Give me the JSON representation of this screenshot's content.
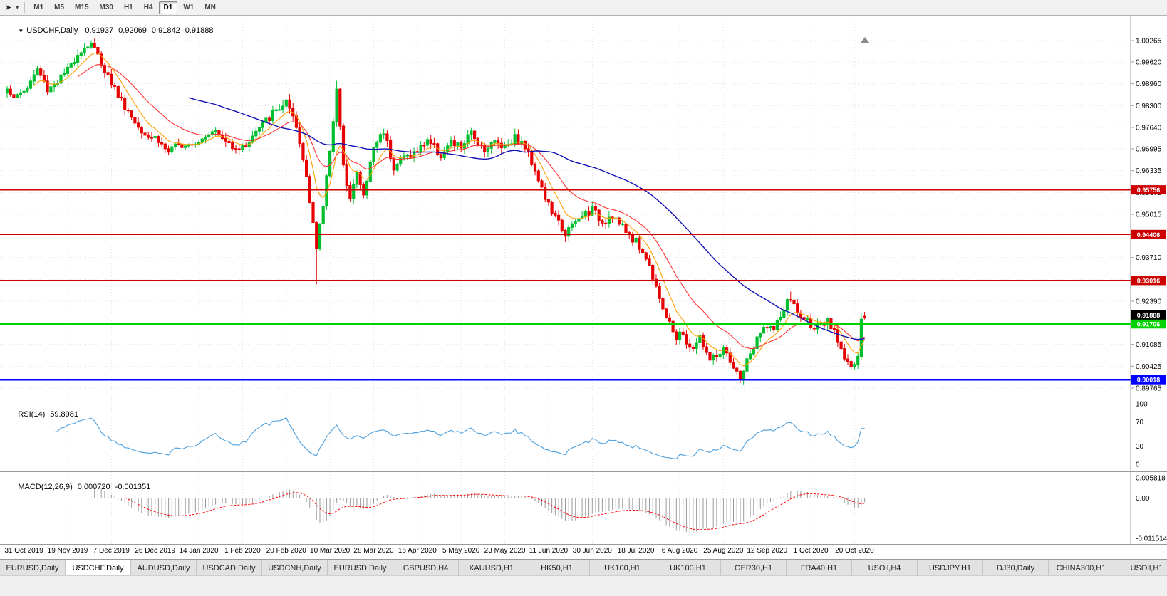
{
  "colors": {
    "bull": "#00bf2f",
    "bear": "#e60000",
    "ma_fast": "#ff9f00",
    "ma_mid": "#ff3232",
    "ma_slow": "#0f10b4",
    "grid": "#e4e4e4",
    "rsi_line": "#4a9fdf",
    "rsi_level": "#b8c4b8",
    "macd_hist": "#9a9a9a",
    "macd_signal": "#ff0000",
    "price_line": "#b8b8b8",
    "price_badge_bg": "#000000"
  },
  "toolbar": {
    "timeframes": [
      {
        "label": "M1",
        "active": false
      },
      {
        "label": "M5",
        "active": false
      },
      {
        "label": "M15",
        "active": false
      },
      {
        "label": "M30",
        "active": false
      },
      {
        "label": "H1",
        "active": false
      },
      {
        "label": "H4",
        "active": false
      },
      {
        "label": "D1",
        "active": true
      },
      {
        "label": "W1",
        "active": false
      },
      {
        "label": "MN",
        "active": false
      }
    ]
  },
  "chart": {
    "title": {
      "symbol_period": "USDCHF,Daily",
      "open": "0.91937",
      "high": "0.92069",
      "low": "0.91842",
      "close": "0.91888"
    },
    "price_axis": {
      "max": 1.00265,
      "min": 0.89765,
      "ticks": [
        "1.00265",
        "0.99620",
        "0.98960",
        "0.98300",
        "0.97640",
        "0.96995",
        "0.96335",
        "0.95675",
        "0.95015",
        "0.94370",
        "0.93710",
        "0.93050",
        "0.92390",
        "0.91730",
        "0.91085",
        "0.90425",
        "0.89765"
      ]
    },
    "hlines": [
      {
        "value": "0.95756",
        "price": 0.95756,
        "color": "#cc0000",
        "width": 1.5,
        "text": "#ffffff"
      },
      {
        "value": "0.94406",
        "price": 0.94406,
        "color": "#cc0000",
        "width": 1.5,
        "text": "#ffffff"
      },
      {
        "value": "0.93016",
        "price": 0.93016,
        "color": "#cc0000",
        "width": 1.5,
        "text": "#ffffff"
      },
      {
        "value": "0.91706",
        "price": 0.91706,
        "color": "#00d200",
        "width": 3,
        "text": "#ffffff"
      },
      {
        "value": "0.90018",
        "price": 0.90018,
        "color": "#0000ff",
        "width": 2.5,
        "text": "#ffffff"
      }
    ],
    "current_price": {
      "value": "0.91888",
      "price": 0.91888
    },
    "dates": [
      "31 Oct 2019",
      "19 Nov 2019",
      "7 Dec 2019",
      "26 Dec 2019",
      "14 Jan 2020",
      "1 Feb 2020",
      "20 Feb 2020",
      "10 Mar 2020",
      "28 Mar 2020",
      "16 Apr 2020",
      "5 May 2020",
      "23 May 2020",
      "11 Jun 2020",
      "30 Jun 2020",
      "18 Jul 2020",
      "6 Aug 2020",
      "25 Aug 2020",
      "12 Sep 2020",
      "1 Oct 2020",
      "20 Oct 2020"
    ],
    "chart_data": {
      "type": "candlestick",
      "symbol": "USDCHF",
      "period": "Daily",
      "values_approximate": true,
      "num_candles": 256,
      "ohlc_last": {
        "open": 0.91937,
        "high": 0.92069,
        "low": 0.91842,
        "close": 0.91888
      },
      "close_anchors": [
        [
          0,
          0.988
        ],
        [
          3,
          0.9855
        ],
        [
          6,
          0.9885
        ],
        [
          9,
          0.994
        ],
        [
          12,
          0.988
        ],
        [
          15,
          0.9905
        ],
        [
          18,
          0.9935
        ],
        [
          21,
          0.999
        ],
        [
          25,
          1.002
        ],
        [
          28,
          0.996
        ],
        [
          31,
          0.99
        ],
        [
          34,
          0.9845
        ],
        [
          38,
          0.978
        ],
        [
          42,
          0.974
        ],
        [
          44,
          0.9735
        ],
        [
          48,
          0.969
        ],
        [
          52,
          0.9715
        ],
        [
          57,
          0.9725
        ],
        [
          61,
          0.976
        ],
        [
          65,
          0.972
        ],
        [
          70,
          0.97
        ],
        [
          74,
          0.975
        ],
        [
          79,
          0.9805
        ],
        [
          83,
          0.984
        ],
        [
          86,
          0.976
        ],
        [
          89,
          0.962
        ],
        [
          91,
          0.948
        ],
        [
          92,
          0.9395
        ],
        [
          94,
          0.953
        ],
        [
          96,
          0.97
        ],
        [
          98,
          0.988
        ],
        [
          100,
          0.964
        ],
        [
          102,
          0.956
        ],
        [
          104,
          0.9625
        ],
        [
          106,
          0.9555
        ],
        [
          109,
          0.9705
        ],
        [
          112,
          0.9755
        ],
        [
          115,
          0.9645
        ],
        [
          118,
          0.9675
        ],
        [
          122,
          0.969
        ],
        [
          125,
          0.973
        ],
        [
          129,
          0.968
        ],
        [
          132,
          0.9715
        ],
        [
          135,
          0.9705
        ],
        [
          138,
          0.9745
        ],
        [
          142,
          0.97
        ],
        [
          145,
          0.972
        ],
        [
          148,
          0.971
        ],
        [
          151,
          0.9735
        ],
        [
          154,
          0.9705
        ],
        [
          157,
          0.964
        ],
        [
          160,
          0.955
        ],
        [
          163,
          0.949
        ],
        [
          166,
          0.9445
        ],
        [
          169,
          0.9475
        ],
        [
          172,
          0.9505
        ],
        [
          174,
          0.9515
        ],
        [
          177,
          0.948
        ],
        [
          180,
          0.95
        ],
        [
          183,
          0.946
        ],
        [
          187,
          0.942
        ],
        [
          190,
          0.937
        ],
        [
          193,
          0.929
        ],
        [
          196,
          0.9185
        ],
        [
          199,
          0.913
        ],
        [
          200,
          0.915
        ],
        [
          203,
          0.909
        ],
        [
          206,
          0.913
        ],
        [
          209,
          0.906
        ],
        [
          213,
          0.909
        ],
        [
          216,
          0.903
        ],
        [
          218,
          0.9008
        ],
        [
          221,
          0.908
        ],
        [
          224,
          0.914
        ],
        [
          226,
          0.917
        ],
        [
          228,
          0.915
        ],
        [
          231,
          0.9215
        ],
        [
          233,
          0.925
        ],
        [
          235,
          0.92
        ],
        [
          239,
          0.917
        ],
        [
          242,
          0.9155
        ],
        [
          244,
          0.9175
        ],
        [
          247,
          0.9125
        ],
        [
          249,
          0.9075
        ],
        [
          251,
          0.904
        ],
        [
          253,
          0.906
        ],
        [
          254,
          0.9185
        ],
        [
          255,
          0.91888
        ]
      ],
      "spikes": [
        {
          "i": 25,
          "high": 1.0024
        },
        {
          "i": 92,
          "low": 0.929
        },
        {
          "i": 98,
          "high": 0.9905
        },
        {
          "i": 218,
          "low": 0.9002
        },
        {
          "i": 233,
          "high": 0.9268
        },
        {
          "i": 254,
          "high": 0.9196
        }
      ],
      "moving_averages": [
        {
          "name": "fast",
          "method": "ema",
          "period": 8,
          "color_key": "ma_fast"
        },
        {
          "name": "medium",
          "method": "ema",
          "period": 21,
          "color_key": "ma_mid"
        },
        {
          "name": "slow",
          "method": "sma",
          "period": 55,
          "color_key": "ma_slow"
        }
      ]
    }
  },
  "rsi": {
    "label": "RSI(14)",
    "value": "59.8981",
    "period": 14,
    "levels": [
      {
        "label": "100",
        "v": 100
      },
      {
        "label": "70",
        "v": 70
      },
      {
        "label": "30",
        "v": 30
      },
      {
        "label": "0",
        "v": 0
      }
    ],
    "dotted_levels": [
      70,
      30
    ]
  },
  "macd": {
    "label": "MACD(12,26,9)",
    "value_main": "0.000720",
    "value_signal": "-0.001351",
    "fast": 12,
    "slow": 26,
    "signal": 9,
    "axis": [
      {
        "label": "0.005818",
        "v": 0.005818
      },
      {
        "label": "0.00",
        "v": 0
      },
      {
        "label": "-0.011514",
        "v": -0.011514
      }
    ],
    "max": 0.005818,
    "min": -0.011514
  },
  "tabs": [
    {
      "label": "EURUSD,Daily",
      "active": false
    },
    {
      "label": "USDCHF,Daily",
      "active": true
    },
    {
      "label": "AUDUSD,Daily",
      "active": false
    },
    {
      "label": "USDCAD,Daily",
      "active": false
    },
    {
      "label": "USDCNH,Daily",
      "active": false
    },
    {
      "label": "EURUSD,Daily",
      "active": false
    },
    {
      "label": "GBPUSD,H4",
      "active": false
    },
    {
      "label": "XAUUSD,H1",
      "active": false
    },
    {
      "label": "HK50,H1",
      "active": false
    },
    {
      "label": "UK100,H1",
      "active": false
    },
    {
      "label": "UK100,H1",
      "active": false
    },
    {
      "label": "GER30,H1",
      "active": false
    },
    {
      "label": "FRA40,H1",
      "active": false
    },
    {
      "label": "USOil,H4",
      "active": false
    },
    {
      "label": "USDJPY,H1",
      "active": false
    },
    {
      "label": "DJ30,Daily",
      "active": false
    },
    {
      "label": "CHINA300,H1",
      "active": false
    },
    {
      "label": "USOil,H1",
      "active": false
    }
  ]
}
